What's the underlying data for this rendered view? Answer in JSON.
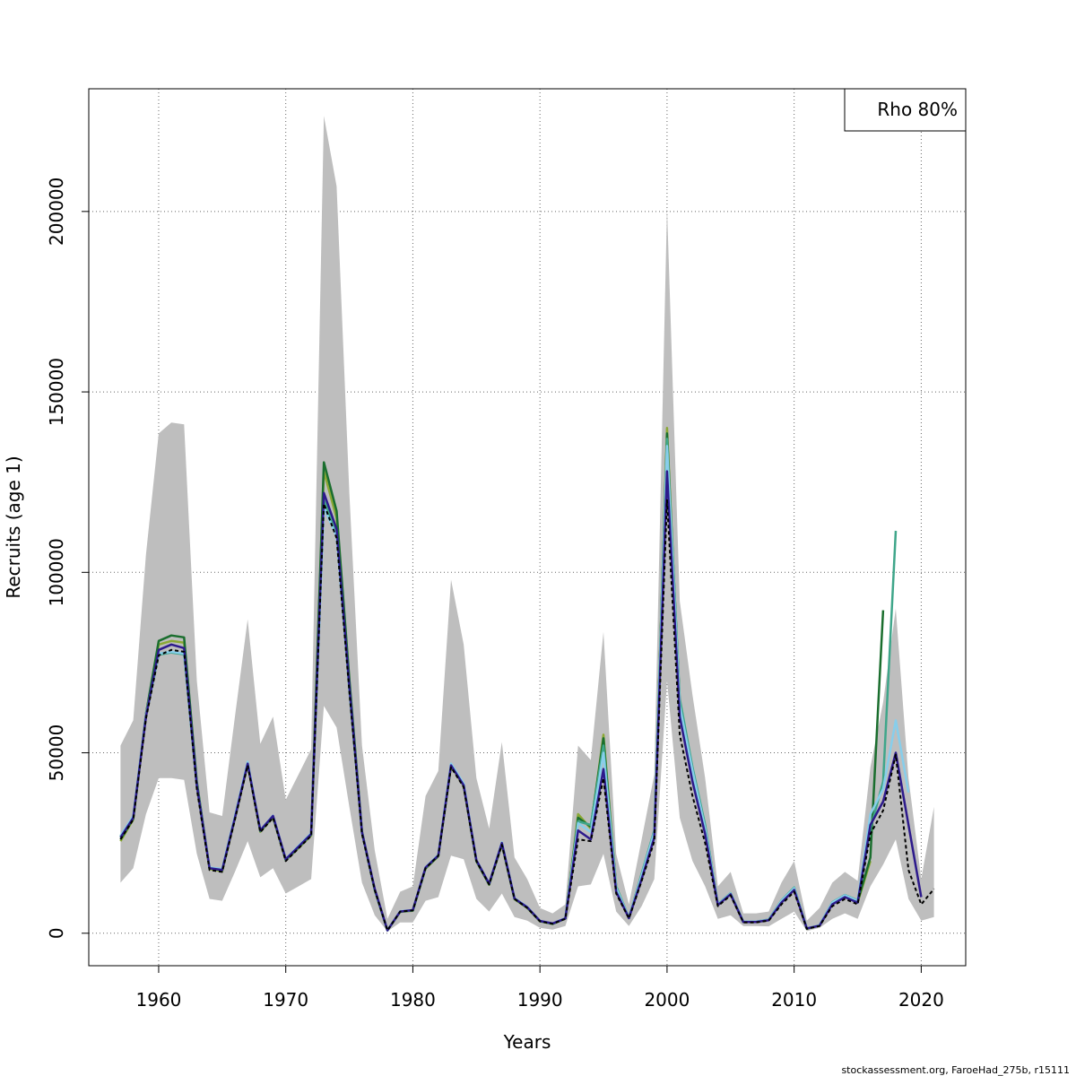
{
  "chart_data": {
    "type": "line",
    "title": "",
    "xlabel": "Years",
    "ylabel": "Recruits (age 1)",
    "xlim": [
      1954.5,
      2023.5
    ],
    "ylim": [
      -9000,
      234000
    ],
    "x_ticks": [
      1960,
      1970,
      1980,
      1990,
      2000,
      2010,
      2020
    ],
    "y_ticks": [
      0,
      50000,
      100000,
      150000,
      200000
    ],
    "grid": true,
    "legend": {
      "position": "top-right",
      "entries": [
        "Rho 80%"
      ]
    },
    "ci_band": {
      "x": [
        1957,
        1958,
        1959,
        1960,
        1961,
        1962,
        1963,
        1964,
        1965,
        1966,
        1967,
        1968,
        1969,
        1970,
        1971,
        1972,
        1973,
        1974,
        1975,
        1976,
        1977,
        1978,
        1979,
        1980,
        1981,
        1982,
        1983,
        1984,
        1985,
        1986,
        1987,
        1988,
        1989,
        1990,
        1991,
        1992,
        1993,
        1994,
        1995,
        1996,
        1997,
        1998,
        1999,
        2000,
        2001,
        2002,
        2003,
        2004,
        2005,
        2006,
        2007,
        2008,
        2009,
        2010,
        2011,
        2012,
        2013,
        2014,
        2015,
        2016,
        2017,
        2018,
        2019,
        2020,
        2021
      ],
      "upper": [
        52000,
        59000,
        105000,
        138500,
        141500,
        141000,
        70000,
        33500,
        32500,
        60000,
        87000,
        52500,
        60000,
        37000,
        44000,
        51000,
        226500,
        207000,
        122000,
        52000,
        23000,
        4000,
        11500,
        13000,
        38000,
        45000,
        98000,
        80000,
        43000,
        29000,
        53000,
        21000,
        15000,
        7000,
        5500,
        8000,
        52000,
        48000,
        83500,
        22000,
        8000,
        26000,
        44000,
        201000,
        92000,
        66000,
        43000,
        13000,
        17000,
        5500,
        5500,
        6000,
        14000,
        20000,
        3500,
        7000,
        14000,
        17000,
        14500,
        46000,
        64000,
        90000,
        43000,
        15000,
        35000
      ],
      "lower": [
        14000,
        18000,
        33000,
        43000,
        43000,
        42500,
        22000,
        9500,
        9000,
        17000,
        25500,
        15500,
        18000,
        11000,
        13000,
        15000,
        63000,
        57000,
        35000,
        14000,
        5000,
        500,
        3000,
        3000,
        9000,
        10000,
        21500,
        20500,
        9500,
        6000,
        11000,
        4500,
        3500,
        1500,
        1000,
        2000,
        13000,
        13500,
        22000,
        6000,
        2000,
        7500,
        15000,
        70000,
        32000,
        20000,
        13000,
        4000,
        5000,
        2000,
        2000,
        1900,
        4000,
        6000,
        600,
        1500,
        4000,
        5500,
        4000,
        13000,
        19000,
        26000,
        9500,
        3500,
        4500
      ]
    },
    "series": [
      {
        "x": [
          1957,
          1958,
          1959,
          1960,
          1961,
          1962,
          1963,
          1964,
          1965,
          1966,
          1967,
          1968,
          1969,
          1970,
          1971,
          1972,
          1973,
          1974,
          1975,
          1976,
          1977,
          1978,
          1979,
          1980,
          1981,
          1982,
          1983,
          1984,
          1985,
          1986,
          1987,
          1988,
          1989,
          1990,
          1991,
          1992,
          1993,
          1994,
          1995,
          1996,
          1997,
          1998,
          1999,
          2000,
          2001,
          2002,
          2003,
          2004,
          2005,
          2006,
          2007,
          2008,
          2009,
          2010,
          2011,
          2012,
          2013,
          2014,
          2015,
          2016,
          2017,
          2018,
          2019,
          2020,
          2021
        ],
        "values": [
          26000,
          31500,
          59500,
          77000,
          78500,
          78000,
          40000,
          17500,
          17000,
          31500,
          46500,
          28000,
          32000,
          20000,
          23500,
          27000,
          119000,
          109500,
          67000,
          27500,
          12000,
          800,
          6000,
          6300,
          18000,
          21500,
          46000,
          40500,
          20000,
          13500,
          24500,
          9500,
          7000,
          3300,
          2600,
          4000,
          26000,
          25500,
          43000,
          11000,
          4100,
          14500,
          25500,
          120000,
          55000,
          38000,
          25000,
          7500,
          10500,
          3000,
          3000,
          3500,
          8000,
          11500,
          1200,
          2000,
          7500,
          9500,
          8000,
          27500,
          34000,
          49500,
          17500,
          8000,
          12300
        ],
        "color": "#000000",
        "dashed": true
      },
      {
        "x": [
          1957,
          1958,
          1959,
          1960,
          1961,
          1962,
          1963,
          1964,
          1965,
          1966,
          1967,
          1968,
          1969,
          1970,
          1971,
          1972,
          1973,
          1974,
          1975,
          1976,
          1977,
          1978,
          1979,
          1980,
          1981,
          1982,
          1983,
          1984,
          1985,
          1986,
          1987,
          1988,
          1989,
          1990,
          1991,
          1992,
          1993,
          1994,
          1995,
          1996,
          1997,
          1998,
          1999,
          2000,
          2001,
          2002,
          2003,
          2004,
          2005,
          2006,
          2007,
          2008,
          2009,
          2010,
          2011,
          2012,
          2013,
          2014,
          2015,
          2016,
          2017,
          2018,
          2019,
          2020
        ],
        "values": [
          26500,
          32000,
          60000,
          78500,
          80000,
          79000,
          41000,
          18000,
          17500,
          32000,
          47000,
          28500,
          32500,
          20500,
          24000,
          27500,
          122000,
          112000,
          68500,
          28000,
          12300,
          800,
          6000,
          6400,
          18200,
          21500,
          46500,
          41000,
          20200,
          13700,
          25000,
          9600,
          7200,
          3400,
          2700,
          4100,
          28500,
          26000,
          45500,
          11500,
          4200,
          15000,
          26500,
          128000,
          60000,
          42000,
          27500,
          7800,
          10800,
          3100,
          3100,
          3600,
          8500,
          12000,
          1300,
          2100,
          8000,
          10000,
          8500,
          30000,
          36500,
          50000,
          30000,
          10000
        ],
        "color": "#2d1a8c"
      },
      {
        "x": [
          1957,
          1958,
          1959,
          1960,
          1961,
          1962,
          1963,
          1964,
          1965,
          1966,
          1967,
          1968,
          1969,
          1970,
          1971,
          1972,
          1973,
          1974,
          1975,
          1976,
          1977,
          1978,
          1979,
          1980,
          1981,
          1982,
          1983,
          1984,
          1985,
          1986,
          1987,
          1988,
          1989,
          1990,
          1991,
          1992,
          1993,
          1994,
          1995,
          1996,
          1997,
          1998,
          1999,
          2000,
          2001,
          2002,
          2003,
          2004,
          2005,
          2006,
          2007,
          2008,
          2009,
          2010,
          2011,
          2012,
          2013,
          2014,
          2015,
          2016,
          2017,
          2018,
          2019
        ],
        "values": [
          27000,
          32500,
          60500,
          77500,
          78000,
          77500,
          41000,
          18200,
          17800,
          32500,
          47500,
          28600,
          32600,
          20600,
          24200,
          27700,
          118000,
          110000,
          68000,
          28000,
          12200,
          800,
          6100,
          6400,
          18300,
          21700,
          47000,
          41500,
          20300,
          13800,
          25200,
          9700,
          7300,
          3400,
          2700,
          4200,
          30500,
          28000,
          50000,
          12500,
          4300,
          16000,
          28000,
          135000,
          63000,
          45000,
          29000,
          8000,
          11000,
          3200,
          3200,
          3700,
          9000,
          12500,
          1300,
          2200,
          8500,
          10500,
          9000,
          33000,
          40000,
          59000,
          39000
        ],
        "color": "#87ceeb"
      },
      {
        "x": [
          1957,
          1958,
          1959,
          1960,
          1961,
          1962,
          1963,
          1964,
          1965,
          1966,
          1967,
          1968,
          1969,
          1970,
          1971,
          1972,
          1973,
          1974,
          1975,
          1976,
          1977,
          1978,
          1979,
          1980,
          1981,
          1982,
          1983,
          1984,
          1985,
          1986,
          1987,
          1988,
          1989,
          1990,
          1991,
          1992,
          1993,
          1994,
          1995,
          1996,
          1997,
          1998,
          1999,
          2000,
          2001,
          2002,
          2003,
          2004,
          2005,
          2006,
          2007,
          2008,
          2009,
          2010,
          2011,
          2012,
          2013,
          2014,
          2015,
          2016,
          2017,
          2018
        ],
        "values": [
          26800,
          32200,
          60200,
          77200,
          77800,
          77300,
          40800,
          18100,
          17700,
          32300,
          47300,
          28400,
          32400,
          20400,
          24000,
          27500,
          120000,
          111000,
          67500,
          27800,
          12100,
          800,
          6000,
          6300,
          18100,
          21600,
          46800,
          41200,
          20100,
          13600,
          25000,
          9600,
          7200,
          3400,
          2650,
          4150,
          31000,
          30000,
          52000,
          13000,
          4300,
          16500,
          28500,
          137000,
          65000,
          46000,
          30000,
          8100,
          11100,
          3200,
          3200,
          3800,
          9100,
          12700,
          1300,
          2200,
          8600,
          10600,
          9100,
          29000,
          42000,
          111500
        ],
        "color": "#3fa68a"
      },
      {
        "x": [
          1957,
          1958,
          1959,
          1960,
          1961,
          1962,
          1963,
          1964,
          1965,
          1966,
          1967,
          1968,
          1969,
          1970,
          1971,
          1972,
          1973,
          1974,
          1975,
          1976,
          1977,
          1978,
          1979,
          1980,
          1981,
          1982,
          1983,
          1984,
          1985,
          1986,
          1987,
          1988,
          1989,
          1990,
          1991,
          1992,
          1993,
          1994,
          1995,
          1996,
          1997,
          1998,
          1999,
          2000,
          2001,
          2002,
          2003,
          2004,
          2005,
          2006,
          2007,
          2008,
          2009,
          2010,
          2011,
          2012,
          2013,
          2014,
          2015,
          2016,
          2017
        ],
        "values": [
          26000,
          31800,
          60800,
          81000,
          82500,
          82000,
          42000,
          18000,
          17400,
          32000,
          47000,
          28300,
          32300,
          20300,
          23800,
          27300,
          130500,
          117000,
          70500,
          28200,
          12000,
          800,
          6000,
          6300,
          18000,
          21400,
          46500,
          41000,
          20000,
          13500,
          24800,
          9500,
          7100,
          3350,
          2600,
          4100,
          32000,
          29500,
          54000,
          12500,
          4200,
          16000,
          27500,
          138500,
          64000,
          45500,
          29500,
          8000,
          11000,
          3150,
          3150,
          3700,
          9000,
          12600,
          1250,
          2150,
          8300,
          10300,
          8800,
          21000,
          89500
        ],
        "color": "#1a6e2e"
      },
      {
        "x": [
          1957,
          1958,
          1959,
          1960,
          1961,
          1962,
          1963,
          1964,
          1965,
          1966,
          1967,
          1968,
          1969,
          1970,
          1971,
          1972,
          1973,
          1974,
          1975,
          1976,
          1977,
          1978,
          1979,
          1980,
          1981,
          1982,
          1983,
          1984,
          1985,
          1986,
          1987,
          1988,
          1989,
          1990,
          1991,
          1992,
          1993,
          1994,
          1995,
          1996,
          1997,
          1998,
          1999,
          2000,
          2001,
          2002,
          2003,
          2004,
          2005,
          2006,
          2007,
          2008,
          2009,
          2010,
          2011,
          2012,
          2013,
          2014,
          2015,
          2016
        ],
        "values": [
          25500,
          31500,
          60500,
          80000,
          81000,
          80500,
          41500,
          17800,
          17200,
          31800,
          46800,
          28100,
          32100,
          20200,
          23600,
          27100,
          128000,
          115000,
          69500,
          28000,
          11900,
          800,
          5900,
          6200,
          17900,
          21300,
          46300,
          40800,
          19900,
          13400,
          24600,
          9400,
          7000,
          3300,
          2550,
          4050,
          33000,
          29000,
          55000,
          13000,
          4250,
          16200,
          27800,
          140000,
          63500,
          45000,
          29200,
          7900,
          10900,
          3100,
          3100,
          3650,
          8900,
          12400,
          1200,
          2100,
          8100,
          10100,
          8600,
          20000
        ],
        "color": "#8aa834"
      }
    ]
  },
  "footer_text": "stockassessment.org, FaroeHad_275b, r15111"
}
